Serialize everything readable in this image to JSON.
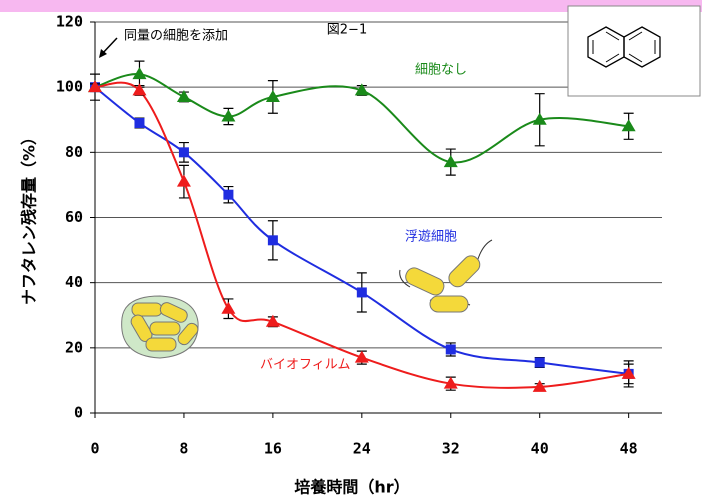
{
  "chart_data": {
    "type": "line",
    "title": "図2−1",
    "x_label": "培養時間（hr）",
    "y_label": "ナフタレン残存量（%）",
    "annotation": "同量の細胞を添加",
    "x": [
      0,
      4,
      8,
      12,
      16,
      24,
      32,
      40,
      48
    ],
    "xlim": [
      0,
      51
    ],
    "xticks": [
      0,
      8,
      16,
      24,
      32,
      40,
      48
    ],
    "ylim": [
      0,
      120
    ],
    "yticks": [
      0,
      20,
      40,
      60,
      80,
      100,
      120
    ],
    "grid": true,
    "series": [
      {
        "name": "細胞なし",
        "color": "#1a8a1a",
        "marker": "triangle",
        "values": [
          100,
          104,
          97,
          91,
          97,
          99,
          77,
          90,
          88
        ],
        "errors": [
          4,
          4,
          1.5,
          2.5,
          5,
          1.5,
          4,
          8,
          4
        ]
      },
      {
        "name": "浮遊細胞",
        "color": "#1f2de0",
        "marker": "square",
        "values": [
          100,
          89,
          80,
          67,
          53,
          37,
          19.5,
          15.5,
          12
        ],
        "errors": [
          1,
          1.5,
          3,
          2.5,
          6,
          6,
          2,
          1.5,
          4
        ]
      },
      {
        "name": "バイオフィルム",
        "color": "#ee1c1c",
        "marker": "triangle",
        "values": [
          100,
          99,
          71,
          32,
          28,
          17,
          9,
          8,
          12
        ],
        "errors": [
          1,
          1.5,
          5,
          3,
          1.5,
          2,
          2,
          1,
          3
        ]
      }
    ]
  }
}
